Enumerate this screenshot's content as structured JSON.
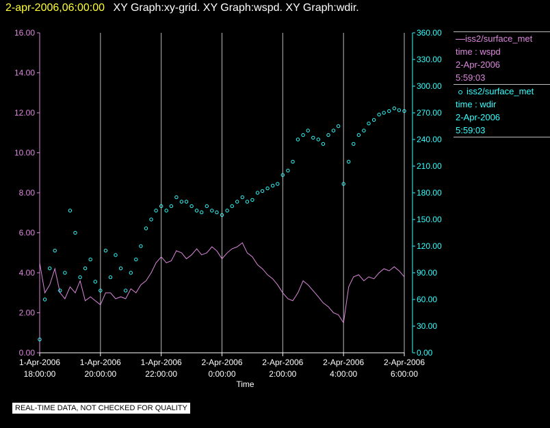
{
  "header": {
    "time": "2-apr-2006,06:00:00",
    "graphs": "XY Graph:xy-grid.  XY Graph:wspd.  XY Graph:wdir."
  },
  "colors": {
    "wspd": "#dd88dd",
    "wdir": "#33ffff",
    "grid": "#bbbbbb",
    "time": "#ffff33"
  },
  "legend": [
    {
      "series": "wspd",
      "line1": "iss2/surface_met",
      "line2": "time : wspd",
      "line3": "2-Apr-2006",
      "line4": "5:59:03",
      "marker": "line"
    },
    {
      "series": "wdir",
      "line1": "iss2/surface_met",
      "line2": "time : wdir",
      "line3": "2-Apr-2006",
      "line4": "5:59:03",
      "marker": "circle"
    }
  ],
  "notice": "REAL-TIME DATA, NOT CHECKED FOR QUALITY",
  "chart_data": {
    "type": "scatter",
    "xlabel": "Time",
    "x_ticks": [
      {
        "x": 18,
        "line1": "1-Apr-2006",
        "line2": "18:00:00"
      },
      {
        "x": 20,
        "line1": "1-Apr-2006",
        "line2": "20:00:00"
      },
      {
        "x": 22,
        "line1": "1-Apr-2006",
        "line2": "22:00:00"
      },
      {
        "x": 24,
        "line1": "2-Apr-2006",
        "line2": "0:00:00"
      },
      {
        "x": 26,
        "line1": "2-Apr-2006",
        "line2": "2:00:00"
      },
      {
        "x": 28,
        "line1": "2-Apr-2006",
        "line2": "4:00:00"
      },
      {
        "x": 30,
        "line1": "2-Apr-2006",
        "line2": "6:00:00"
      }
    ],
    "xlim": [
      18,
      30
    ],
    "y_left": {
      "label": "wspd",
      "lim": [
        0,
        16
      ],
      "ticks": [
        "0.00",
        "2.00",
        "4.00",
        "6.00",
        "8.00",
        "10.00",
        "12.00",
        "14.00",
        "16.00"
      ]
    },
    "y_right": {
      "label": "wdir",
      "lim": [
        0,
        360
      ],
      "ticks": [
        "0.00",
        "30.00",
        "60.00",
        "90.00",
        "120.00",
        "150.00",
        "180.00",
        "210.00",
        "240.00",
        "270.00",
        "300.00",
        "330.00",
        "360.00"
      ]
    },
    "series": [
      {
        "name": "wspd",
        "style": "line",
        "axis": "left",
        "x": [
          18.0,
          18.17,
          18.33,
          18.5,
          18.67,
          18.83,
          19.0,
          19.17,
          19.33,
          19.5,
          19.67,
          19.83,
          20.0,
          20.17,
          20.33,
          20.5,
          20.67,
          20.83,
          21.0,
          21.17,
          21.33,
          21.5,
          21.67,
          21.83,
          22.0,
          22.17,
          22.33,
          22.5,
          22.67,
          22.83,
          23.0,
          23.17,
          23.33,
          23.5,
          23.67,
          23.83,
          24.0,
          24.17,
          24.33,
          24.5,
          24.67,
          24.83,
          25.0,
          25.17,
          25.33,
          25.5,
          25.67,
          25.83,
          26.0,
          26.17,
          26.33,
          26.5,
          26.67,
          26.83,
          27.0,
          27.17,
          27.33,
          27.5,
          27.67,
          27.83,
          28.0,
          28.17,
          28.33,
          28.5,
          28.67,
          28.83,
          29.0,
          29.17,
          29.33,
          29.5,
          29.67,
          29.83,
          30.0
        ],
        "values": [
          4.5,
          3.0,
          3.4,
          4.2,
          3.0,
          2.7,
          3.3,
          3.0,
          3.6,
          2.6,
          2.8,
          2.6,
          2.4,
          3.0,
          3.0,
          2.7,
          2.8,
          2.7,
          3.2,
          3.0,
          3.4,
          3.6,
          4.0,
          4.5,
          4.8,
          4.5,
          4.6,
          5.1,
          5.0,
          4.7,
          4.9,
          5.2,
          4.9,
          5.0,
          5.3,
          5.1,
          4.7,
          5.0,
          5.2,
          5.3,
          5.5,
          5.0,
          4.8,
          4.4,
          4.2,
          3.9,
          3.7,
          3.4,
          3.0,
          2.7,
          2.6,
          3.0,
          3.6,
          3.4,
          3.1,
          2.8,
          2.5,
          2.3,
          2.0,
          1.9,
          1.5,
          3.3,
          3.8,
          3.9,
          3.6,
          3.8,
          3.7,
          4.0,
          4.2,
          4.1,
          4.3,
          4.1,
          3.8
        ]
      },
      {
        "name": "wdir",
        "style": "scatter",
        "axis": "right",
        "x": [
          18.0,
          18.17,
          18.33,
          18.5,
          18.67,
          18.83,
          19.0,
          19.17,
          19.33,
          19.5,
          19.67,
          19.83,
          20.0,
          20.17,
          20.33,
          20.5,
          20.67,
          20.83,
          21.0,
          21.17,
          21.33,
          21.5,
          21.67,
          21.83,
          22.0,
          22.17,
          22.33,
          22.5,
          22.67,
          22.83,
          23.0,
          23.17,
          23.33,
          23.5,
          23.67,
          23.83,
          24.0,
          24.17,
          24.33,
          24.5,
          24.67,
          24.83,
          25.0,
          25.17,
          25.33,
          25.5,
          25.67,
          25.83,
          26.0,
          26.17,
          26.33,
          26.5,
          26.67,
          26.83,
          27.0,
          27.17,
          27.33,
          27.5,
          27.67,
          27.83,
          28.0,
          28.17,
          28.33,
          28.5,
          28.67,
          28.83,
          29.0,
          29.17,
          29.33,
          29.5,
          29.67,
          29.83,
          30.0
        ],
        "values": [
          15,
          60,
          95,
          115,
          70,
          90,
          160,
          135,
          85,
          95,
          105,
          80,
          70,
          115,
          85,
          110,
          95,
          70,
          90,
          105,
          120,
          140,
          150,
          160,
          165,
          160,
          165,
          175,
          170,
          170,
          165,
          160,
          158,
          165,
          160,
          158,
          155,
          160,
          165,
          170,
          175,
          170,
          172,
          180,
          182,
          185,
          188,
          190,
          200,
          205,
          215,
          240,
          245,
          250,
          242,
          240,
          235,
          245,
          250,
          255,
          190,
          215,
          235,
          245,
          250,
          258,
          262,
          268,
          270,
          272,
          275,
          273,
          272
        ]
      }
    ]
  }
}
